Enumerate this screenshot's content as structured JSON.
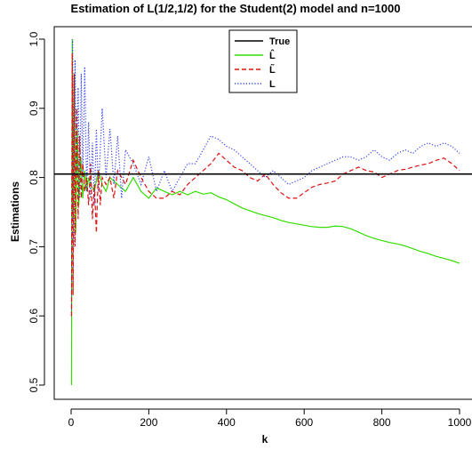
{
  "chart_data": {
    "type": "line",
    "title": "Estimation of L(1/2,1/2) for the Student(2) model and n=1000",
    "xlabel": "k",
    "ylabel": "Estimations",
    "xlim": [
      0,
      1000
    ],
    "ylim": [
      0.5,
      1.0
    ],
    "xticks": [
      0,
      200,
      400,
      600,
      800,
      1000
    ],
    "yticks": [
      0.5,
      0.6,
      0.7,
      0.8,
      0.9,
      1.0
    ],
    "xtick_labels": [
      "0",
      "200",
      "400",
      "600",
      "800",
      "1000"
    ],
    "ytick_labels": [
      "0.5",
      "0.6",
      "0.7",
      "0.8",
      "0.9",
      "1.0"
    ],
    "legend_position": "top-center",
    "true_value": 0.805,
    "series": [
      {
        "name": "True",
        "color": "#000000",
        "style": "solid",
        "x": [
          0,
          1000
        ],
        "values": [
          0.805,
          0.805
        ]
      },
      {
        "name": "L̂",
        "color": "#33dd00",
        "style": "solid",
        "x": [
          1,
          3,
          5,
          8,
          12,
          16,
          20,
          25,
          30,
          35,
          40,
          45,
          50,
          60,
          70,
          80,
          90,
          100,
          120,
          140,
          160,
          180,
          200,
          220,
          240,
          260,
          280,
          300,
          320,
          340,
          360,
          380,
          400,
          420,
          440,
          460,
          480,
          500,
          520,
          540,
          560,
          580,
          600,
          620,
          640,
          660,
          680,
          700,
          720,
          740,
          760,
          780,
          800,
          820,
          840,
          860,
          880,
          900,
          920,
          940,
          960,
          980,
          1000
        ],
        "values": [
          0.5,
          1.0,
          0.74,
          0.95,
          0.72,
          0.87,
          0.76,
          0.83,
          0.77,
          0.81,
          0.78,
          0.8,
          0.79,
          0.78,
          0.81,
          0.79,
          0.78,
          0.8,
          0.79,
          0.78,
          0.8,
          0.78,
          0.77,
          0.785,
          0.78,
          0.775,
          0.78,
          0.775,
          0.78,
          0.776,
          0.778,
          0.772,
          0.768,
          0.762,
          0.756,
          0.752,
          0.748,
          0.745,
          0.742,
          0.738,
          0.735,
          0.733,
          0.731,
          0.729,
          0.728,
          0.728,
          0.73,
          0.729,
          0.726,
          0.721,
          0.716,
          0.712,
          0.709,
          0.706,
          0.704,
          0.701,
          0.697,
          0.693,
          0.69,
          0.686,
          0.683,
          0.68,
          0.676
        ]
      },
      {
        "name": "L̃",
        "color": "#dd1111",
        "style": "dashed",
        "x": [
          1,
          3,
          5,
          8,
          10,
          14,
          18,
          22,
          26,
          30,
          35,
          40,
          45,
          50,
          55,
          60,
          65,
          70,
          75,
          80,
          90,
          100,
          110,
          120,
          140,
          160,
          180,
          200,
          220,
          240,
          260,
          280,
          300,
          320,
          340,
          360,
          380,
          400,
          420,
          440,
          460,
          480,
          500,
          520,
          540,
          560,
          580,
          600,
          620,
          640,
          660,
          680,
          700,
          720,
          740,
          760,
          780,
          800,
          820,
          840,
          860,
          880,
          900,
          920,
          940,
          960,
          980,
          1000
        ],
        "values": [
          0.6,
          0.98,
          0.63,
          0.95,
          0.7,
          0.9,
          0.74,
          0.86,
          0.77,
          0.82,
          0.78,
          0.8,
          0.76,
          0.82,
          0.74,
          0.79,
          0.72,
          0.81,
          0.76,
          0.8,
          0.79,
          0.8,
          0.77,
          0.81,
          0.79,
          0.825,
          0.8,
          0.78,
          0.77,
          0.77,
          0.78,
          0.775,
          0.79,
          0.8,
          0.81,
          0.82,
          0.835,
          0.825,
          0.815,
          0.81,
          0.8,
          0.795,
          0.805,
          0.79,
          0.778,
          0.77,
          0.77,
          0.778,
          0.786,
          0.79,
          0.792,
          0.795,
          0.805,
          0.81,
          0.815,
          0.81,
          0.808,
          0.8,
          0.805,
          0.81,
          0.812,
          0.815,
          0.818,
          0.82,
          0.825,
          0.828,
          0.82,
          0.81
        ]
      },
      {
        "name": "L",
        "color": "#3344ee",
        "style": "dotted",
        "x": [
          1,
          4,
          7,
          10,
          14,
          18,
          22,
          26,
          30,
          35,
          40,
          45,
          50,
          55,
          60,
          65,
          70,
          80,
          90,
          100,
          110,
          120,
          130,
          140,
          160,
          180,
          200,
          220,
          240,
          260,
          280,
          300,
          320,
          340,
          360,
          380,
          400,
          420,
          440,
          460,
          480,
          500,
          520,
          540,
          560,
          580,
          600,
          620,
          640,
          660,
          680,
          700,
          720,
          740,
          760,
          780,
          800,
          820,
          840,
          860,
          880,
          900,
          920,
          940,
          960,
          980,
          1000
        ],
        "values": [
          0.6,
          1.0,
          0.7,
          0.97,
          0.8,
          0.93,
          0.77,
          0.95,
          0.8,
          0.96,
          0.78,
          0.88,
          0.77,
          0.85,
          0.76,
          0.87,
          0.78,
          0.9,
          0.8,
          0.87,
          0.79,
          0.86,
          0.77,
          0.84,
          0.82,
          0.79,
          0.83,
          0.78,
          0.81,
          0.78,
          0.8,
          0.82,
          0.82,
          0.84,
          0.86,
          0.855,
          0.845,
          0.84,
          0.83,
          0.82,
          0.81,
          0.8,
          0.81,
          0.8,
          0.79,
          0.795,
          0.8,
          0.81,
          0.815,
          0.82,
          0.825,
          0.83,
          0.83,
          0.825,
          0.83,
          0.84,
          0.83,
          0.825,
          0.835,
          0.84,
          0.835,
          0.845,
          0.85,
          0.845,
          0.85,
          0.845,
          0.835
        ]
      }
    ]
  }
}
